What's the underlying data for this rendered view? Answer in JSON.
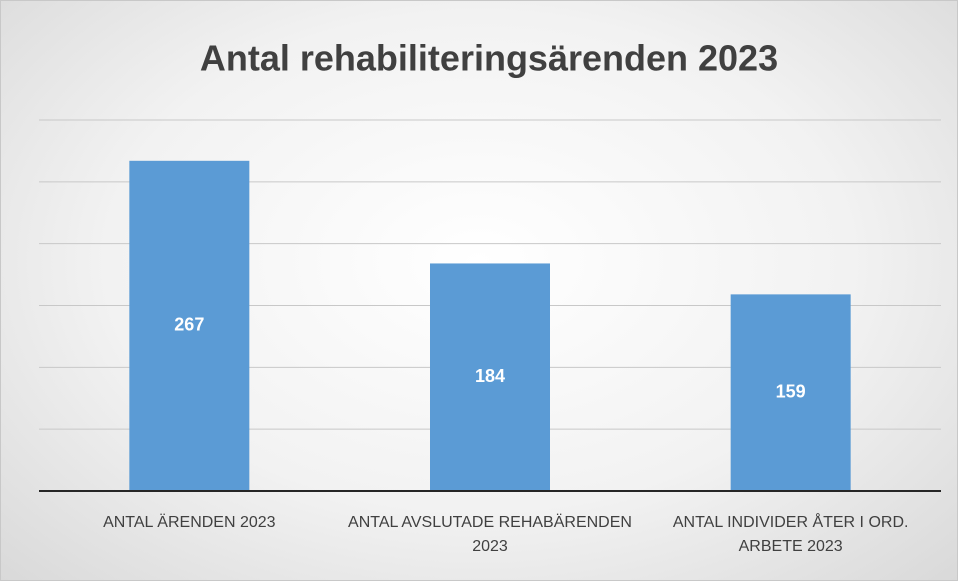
{
  "chart_data": {
    "type": "bar",
    "title": "Antal rehabiliteringsärenden 2023",
    "categories": [
      "ANTAL ÄRENDEN 2023",
      "ANTAL AVSLUTADE REHABÄRENDEN 2023",
      "ANTAL INDIVIDER ÅTER I ORD. ARBETE 2023"
    ],
    "values": [
      267,
      184,
      159
    ],
    "color": "#5b9bd5",
    "ylim": [
      0,
      300
    ],
    "yticks": [
      0,
      50,
      100,
      150,
      200,
      250,
      300
    ],
    "grid": true
  }
}
